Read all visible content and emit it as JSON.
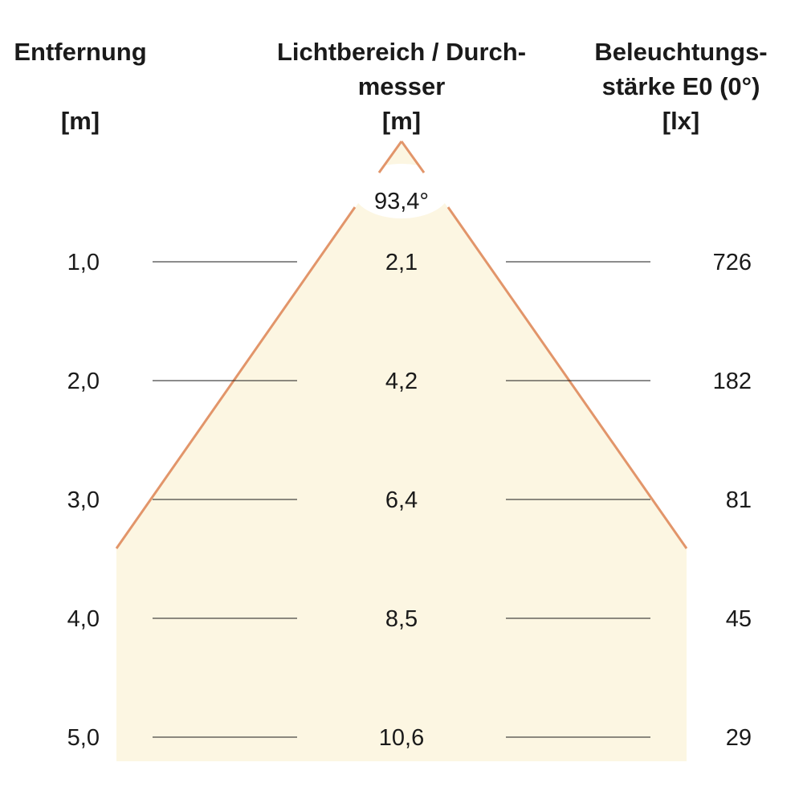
{
  "headers": {
    "distance": {
      "line1": "Entfernung",
      "line2": "",
      "unit": "[m]"
    },
    "diameter": {
      "line1": "Lichtbereich / Durch-",
      "line2": "messer",
      "unit": "[m]"
    },
    "illuminance": {
      "line1": "Beleuchtungs-",
      "line2": "stärke E0 (0°)",
      "unit": "[lx]"
    }
  },
  "beam_angle": "93,4°",
  "rows": [
    {
      "distance": "1,0",
      "diameter": "2,1",
      "illuminance": "726"
    },
    {
      "distance": "2,0",
      "diameter": "4,2",
      "illuminance": "182"
    },
    {
      "distance": "3,0",
      "diameter": "6,4",
      "illuminance": "81"
    },
    {
      "distance": "4,0",
      "diameter": "8,5",
      "illuminance": "45"
    },
    {
      "distance": "5,0",
      "diameter": "10,6",
      "illuminance": "29"
    }
  ],
  "colors": {
    "beam_fill": "#fcf6e2",
    "beam_edge": "#e2956a",
    "text": "#1a1a1a"
  }
}
